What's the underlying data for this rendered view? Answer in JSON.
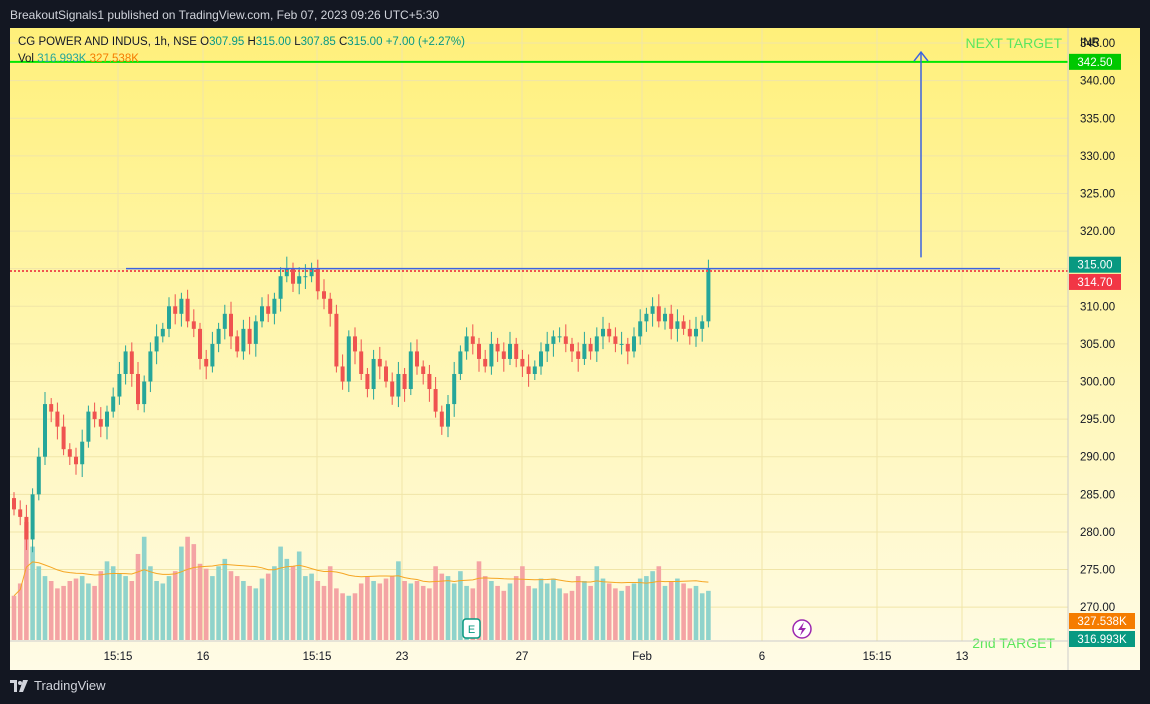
{
  "header": {
    "published_text": "BreakoutSignals1 published on TradingView.com, Feb 07, 2023 09:26 UTC+5:30"
  },
  "legend": {
    "symbol": "CG POWER AND INDUS, 1h, NSE",
    "o_label": "O",
    "o_value": "307.95",
    "h_label": "H",
    "h_value": "315.00",
    "l_label": "L",
    "l_value": "307.85",
    "c_label": "C",
    "c_value": "315.00",
    "change": "+7.00 (+2.27%)",
    "vol_label": "Vol",
    "vol_value": "316.993K",
    "vol_ma_value": "327.538K"
  },
  "footer": {
    "brand": "TradingView"
  },
  "colors": {
    "up": "#26a69a",
    "down": "#ef5350",
    "up_vol": "#8fd3cb",
    "down_vol": "#f4a4a4",
    "target": "#00e600",
    "resistance": "#ef5350",
    "trend": "#3c63e0",
    "vol_ma": "#f5a623"
  },
  "chart_data": {
    "type": "candlestick",
    "currency": "INR",
    "y_ticks": [
      "345.00",
      "340.00",
      "335.00",
      "330.00",
      "325.00",
      "320.00",
      "315.00",
      "310.00",
      "305.00",
      "300.00",
      "295.00",
      "290.00",
      "285.00",
      "280.00",
      "275.00",
      "270.00"
    ],
    "x_ticks": [
      "15:15",
      "16",
      "15:15",
      "23",
      "27",
      "Feb",
      "6",
      "15:15",
      "13"
    ],
    "ylim": [
      265.5,
      347
    ],
    "price_badges": [
      {
        "label": "342.50",
        "value": 342.5,
        "color": "#00c800"
      },
      {
        "label": "315.00",
        "value": 315.0,
        "color": "#089981"
      },
      {
        "label": "314.70",
        "value": 314.7,
        "color": "#f23645"
      }
    ],
    "volume_badges": [
      {
        "label": "327.538K",
        "color": "#f57c00"
      },
      {
        "label": "316.993K",
        "color": "#089981"
      }
    ],
    "annotations": [
      {
        "text": "NEXT TARGET",
        "value": 345.0
      },
      {
        "text": "2nd TARGET",
        "value": 267.0
      }
    ],
    "target_line": 342.5,
    "resistance_line": 314.7,
    "trend_line": {
      "from_bar": 14,
      "to_bar": 124,
      "value": 315.0
    },
    "arrow": {
      "x_bar": 113,
      "from": 316.5,
      "to": 343.8
    },
    "closes": [
      283,
      282,
      279,
      285,
      290,
      297,
      296,
      294,
      291,
      290,
      289,
      292,
      296,
      295,
      294,
      296,
      298,
      301,
      304,
      301,
      297,
      300,
      304,
      306,
      307,
      310,
      309,
      311,
      308,
      307,
      303,
      302,
      305,
      307,
      309,
      306,
      304,
      307,
      305,
      308,
      310,
      309,
      311,
      314,
      315,
      313,
      314,
      314,
      315,
      312,
      311,
      309,
      302,
      300,
      306,
      304,
      301,
      299,
      303,
      302,
      300,
      298,
      301,
      299,
      304,
      302,
      301,
      299,
      296,
      294,
      297,
      301,
      304,
      306,
      305,
      303,
      302,
      305,
      304,
      303,
      305,
      303,
      302,
      301,
      302,
      304,
      305,
      306,
      306,
      305,
      304,
      303,
      305,
      304,
      306,
      307,
      306,
      305,
      305,
      304,
      306,
      308,
      309,
      310,
      308,
      309,
      307,
      308,
      307,
      306,
      307,
      308,
      315
    ],
    "open_high_low_note": "derived in script",
    "volume_scale_note": "relative volumes",
    "volumes": [
      180,
      230,
      480,
      380,
      300,
      260,
      240,
      210,
      220,
      240,
      250,
      260,
      230,
      220,
      280,
      320,
      300,
      270,
      260,
      240,
      350,
      420,
      300,
      240,
      230,
      260,
      280,
      380,
      420,
      390,
      310,
      290,
      260,
      300,
      330,
      280,
      260,
      240,
      220,
      210,
      250,
      270,
      300,
      380,
      330,
      300,
      360,
      260,
      270,
      240,
      220,
      300,
      210,
      190,
      180,
      190,
      230,
      260,
      240,
      230,
      250,
      260,
      320,
      240,
      230,
      240,
      220,
      210,
      300,
      270,
      260,
      230,
      280,
      220,
      210,
      320,
      260,
      240,
      220,
      200,
      230,
      260,
      300,
      220,
      210,
      250,
      230,
      250,
      210,
      190,
      200,
      260,
      240,
      220,
      300,
      250,
      230,
      210,
      200,
      220,
      230,
      250,
      260,
      280,
      300,
      220,
      240,
      250,
      230,
      210,
      220,
      190,
      200
    ]
  }
}
